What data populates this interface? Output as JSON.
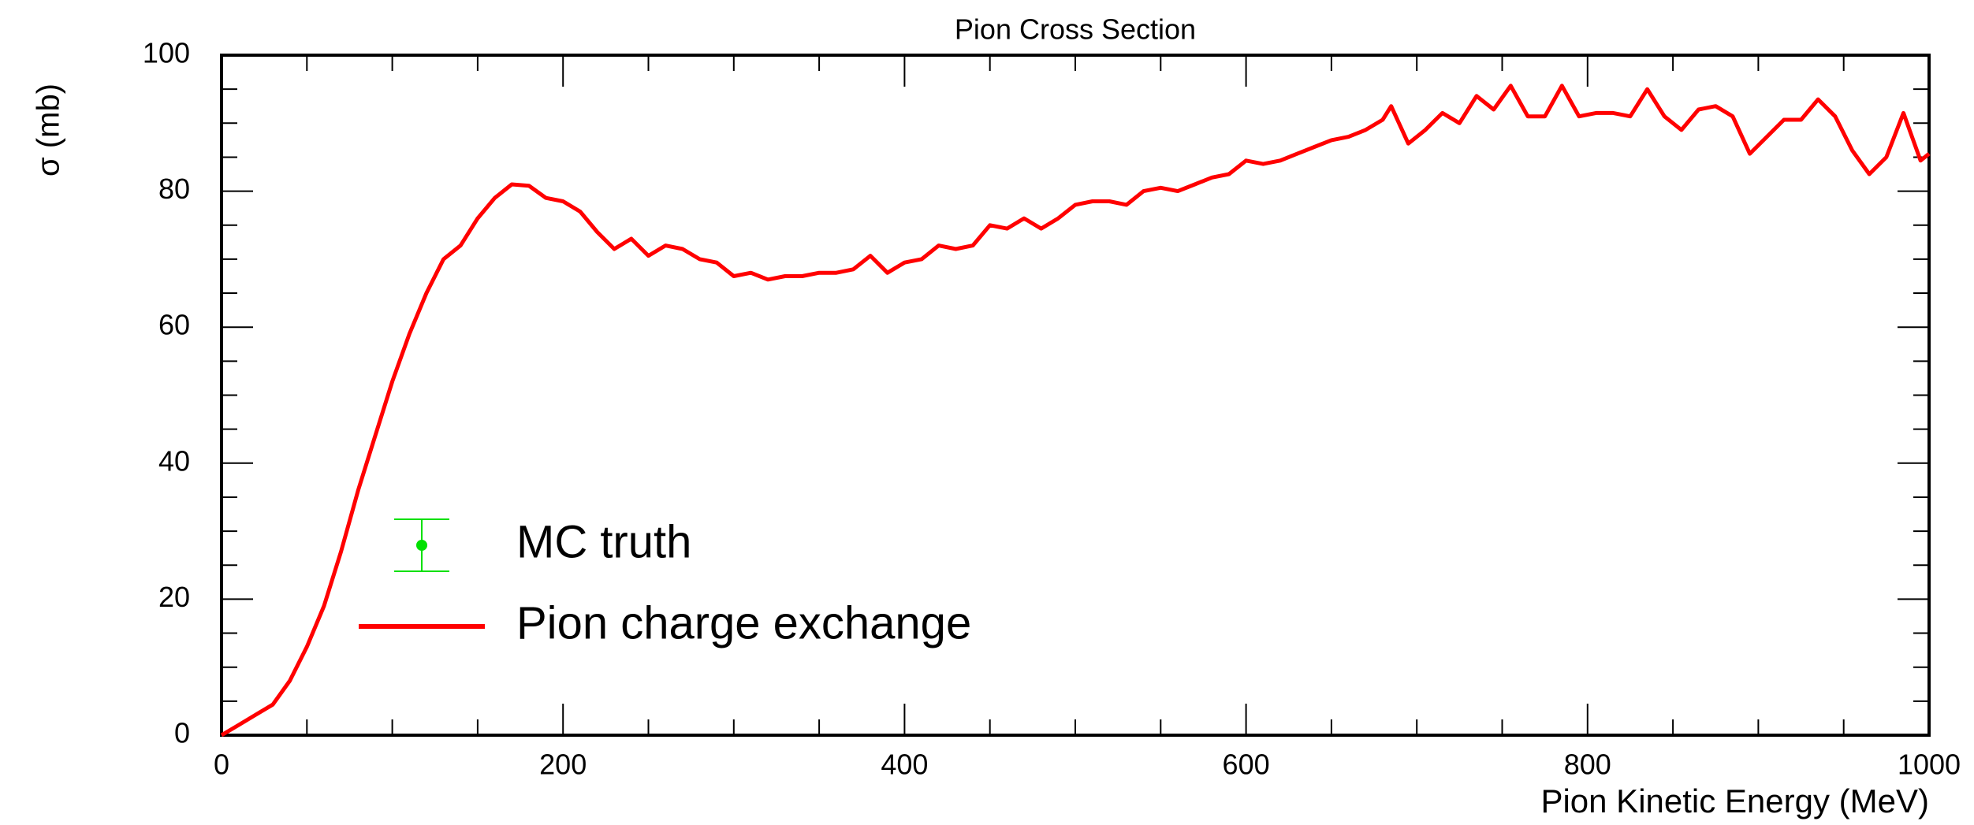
{
  "chart_data": {
    "type": "line",
    "title": "Pion Cross Section",
    "x_label": "Pion Kinetic Energy (MeV)",
    "y_label": "σ (mb)",
    "x": [
      0,
      10,
      20,
      30,
      40,
      50,
      60,
      70,
      80,
      90,
      100,
      110,
      120,
      130,
      140,
      150,
      160,
      170,
      180,
      190,
      200,
      210,
      220,
      230,
      240,
      250,
      260,
      270,
      280,
      290,
      300,
      310,
      320,
      330,
      340,
      350,
      360,
      370,
      380,
      390,
      400,
      410,
      420,
      430,
      440,
      450,
      460,
      470,
      480,
      490,
      500,
      510,
      520,
      530,
      540,
      550,
      560,
      570,
      580,
      590,
      600,
      610,
      620,
      630,
      640,
      650,
      660,
      670,
      680,
      685,
      695,
      705,
      715,
      725,
      735,
      745,
      755,
      765,
      775,
      785,
      795,
      805,
      815,
      825,
      835,
      845,
      855,
      865,
      875,
      885,
      895,
      905,
      915,
      925,
      935,
      945,
      955,
      965,
      975,
      985,
      995,
      1000
    ],
    "series": [
      {
        "name": "MC truth",
        "color": "#00e000",
        "style": "errorbar",
        "values": [
          null,
          null,
          null,
          null,
          null,
          null,
          null,
          null,
          null,
          null,
          null,
          null,
          null,
          null,
          null,
          null,
          null,
          null,
          null,
          null,
          null,
          null,
          null,
          null,
          null,
          null,
          null,
          null,
          null,
          null,
          null,
          null,
          null,
          null,
          null,
          null,
          null,
          null,
          null,
          null,
          null,
          null,
          null,
          null,
          null,
          null,
          null,
          null,
          null,
          null,
          null,
          null,
          null,
          null,
          null,
          null,
          null,
          null,
          null,
          null,
          null,
          null,
          null,
          null,
          null,
          null,
          null,
          null,
          null,
          null,
          null,
          null,
          null,
          null,
          null,
          null,
          null,
          null,
          null,
          null,
          null,
          null,
          null,
          null,
          null,
          null,
          null,
          null,
          null,
          null,
          null,
          null,
          null,
          null,
          null,
          null,
          null,
          null,
          null,
          null,
          null,
          null
        ]
      },
      {
        "name": "Pion charge exchange",
        "color": "#ff0000",
        "style": "line",
        "values": [
          0,
          1.5,
          3,
          4.5,
          8,
          13,
          19,
          27,
          36,
          44,
          52,
          59,
          65,
          70,
          72,
          76,
          79,
          81,
          80.8,
          79,
          78.5,
          77,
          74,
          71.5,
          73,
          70.5,
          72,
          71.5,
          70,
          69.5,
          67.5,
          68,
          67,
          67.5,
          67.5,
          68,
          68,
          68.5,
          70.5,
          68,
          69.5,
          70,
          72,
          71.5,
          72,
          75,
          74.5,
          76,
          74.5,
          76,
          78,
          78.5,
          78.5,
          78,
          80,
          80.5,
          80,
          81,
          82,
          82.5,
          84.5,
          84,
          84.5,
          85.5,
          86.5,
          87.5,
          88,
          89,
          90.5,
          92.5,
          87,
          89,
          91.5,
          90,
          94,
          92,
          95.5,
          91,
          91,
          95.5,
          91,
          91.5,
          91.5,
          91,
          95,
          91,
          89,
          92,
          92.5,
          91,
          85.5,
          88,
          90.5,
          90.5,
          93.5,
          91,
          86,
          82.5,
          85,
          91.5,
          84.5,
          85.5
        ]
      }
    ],
    "xlim": [
      0,
      1000
    ],
    "xticks": [
      0,
      200,
      400,
      600,
      800,
      1000
    ],
    "xminorticks": [
      50,
      100,
      150,
      250,
      300,
      350,
      450,
      500,
      550,
      650,
      700,
      750,
      850,
      900,
      950
    ],
    "ylim": [
      0,
      100
    ],
    "yticks": [
      0,
      20,
      40,
      60,
      80,
      100
    ],
    "yminorticks": [
      5,
      10,
      15,
      25,
      30,
      35,
      45,
      50,
      55,
      65,
      70,
      75,
      85,
      90,
      95
    ],
    "grid": false
  }
}
